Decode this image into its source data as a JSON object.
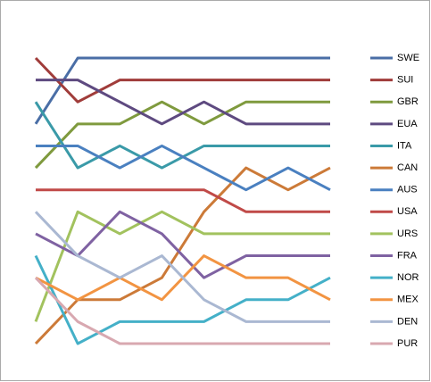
{
  "chart_data": {
    "type": "bump",
    "categories": [
      null,
      null,
      null,
      null,
      null,
      null,
      null,
      null
    ],
    "ylim": [
      1,
      14
    ],
    "y_reversed": true,
    "series": [
      {
        "name": "SWE",
        "color": "#4a6ea6",
        "values": [
          4,
          1,
          1,
          1,
          1,
          1,
          1,
          1
        ]
      },
      {
        "name": "SUI",
        "color": "#a03c3a",
        "values": [
          1,
          3,
          2,
          2,
          2,
          2,
          2,
          2
        ]
      },
      {
        "name": "GBR",
        "color": "#7f9a3e",
        "values": [
          6,
          4,
          4,
          3,
          4,
          3,
          3,
          3
        ]
      },
      {
        "name": "EUA",
        "color": "#5e4a80",
        "values": [
          2,
          2,
          3,
          4,
          3,
          4,
          4,
          4
        ]
      },
      {
        "name": "ITA",
        "color": "#3a9aa8",
        "values": [
          3,
          6,
          5,
          6,
          5,
          5,
          5,
          5
        ]
      },
      {
        "name": "CAN",
        "color": "#cc7a38",
        "values": [
          14,
          12,
          12,
          11,
          8,
          6,
          7,
          6
        ]
      },
      {
        "name": "AUS",
        "color": "#4a80c0",
        "values": [
          5,
          5,
          6,
          5,
          6,
          7,
          6,
          7
        ]
      },
      {
        "name": "USA",
        "color": "#c04a48",
        "values": [
          7,
          7,
          7,
          7,
          7,
          8,
          8,
          8
        ]
      },
      {
        "name": "URS",
        "color": "#a2c25e",
        "values": [
          13,
          8,
          9,
          8,
          9,
          9,
          9,
          9
        ]
      },
      {
        "name": "FRA",
        "color": "#7f62a2",
        "values": [
          9,
          10,
          8,
          9,
          11,
          10,
          10,
          10
        ]
      },
      {
        "name": "NOR",
        "color": "#44b0c8",
        "values": [
          10,
          14,
          13,
          13,
          13,
          12,
          12,
          11
        ]
      },
      {
        "name": "MEX",
        "color": "#f29442",
        "values": [
          11,
          12,
          11,
          12,
          10,
          11,
          11,
          12
        ]
      },
      {
        "name": "DEN",
        "color": "#aab8d2",
        "values": [
          8,
          10,
          11,
          10,
          12,
          13,
          13,
          13
        ]
      },
      {
        "name": "PUR",
        "color": "#d8a8b0",
        "values": [
          11,
          13,
          14,
          14,
          14,
          14,
          14,
          14
        ]
      }
    ]
  }
}
